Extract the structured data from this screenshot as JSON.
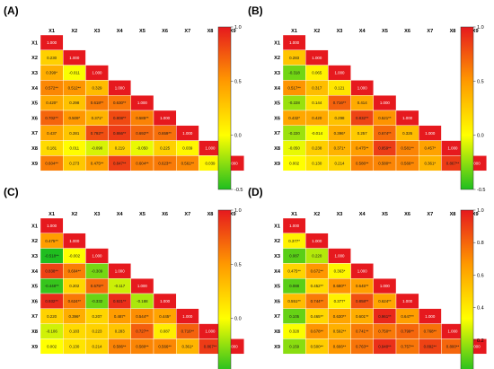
{
  "figure": {
    "panel_labels": [
      "(A)",
      "(B)",
      "(C)",
      "(D)"
    ]
  },
  "chart_data": [
    {
      "type": "heatmap",
      "panel": "(A)",
      "variables": [
        "X1",
        "X2",
        "X3",
        "X4",
        "X5",
        "X6",
        "X7",
        "X8",
        "X9"
      ],
      "colorbar": {
        "min": -0.5,
        "max": 1.0,
        "ticks": [
          "1.0",
          "0.5",
          "0.0",
          "-0.5"
        ],
        "colors": [
          "#1fbe1f",
          "#ffff00",
          "#ff9900",
          "#e6191e"
        ]
      },
      "cells": [
        [
          "1.000"
        ],
        [
          "0.230",
          "1.000"
        ],
        [
          "0.399*",
          "-0.011",
          "1.000"
        ],
        [
          "0.572**",
          "0.512**",
          "0.329",
          "1.000"
        ],
        [
          "0.420*",
          "0.298",
          "0.618**",
          "0.630**",
          "1.000"
        ],
        [
          "0.702**",
          "0.509*",
          "0.371*",
          "0.808**",
          "0.585**",
          "1.000"
        ],
        [
          "0.437",
          "0.281",
          "0.792**",
          "0.866**",
          "0.692**",
          "0.659**",
          "1.000"
        ],
        [
          "0.181",
          "0.011",
          "-0.090",
          "0.219",
          "-0.050",
          "0.225",
          "0.039",
          "1.000"
        ],
        [
          "0.604**",
          "0.273",
          "0.475**",
          "0.847**",
          "0.604**",
          "0.623**",
          "0.561**",
          "0.039",
          "1.000"
        ]
      ]
    },
    {
      "type": "heatmap",
      "panel": "(B)",
      "variables": [
        "X1",
        "X2",
        "X3",
        "X4",
        "X5",
        "X6",
        "X7",
        "X8",
        "X9"
      ],
      "colorbar": {
        "min": -0.5,
        "max": 1.0,
        "ticks": [
          "1.0",
          "0.5",
          "0.0",
          "-0.5"
        ],
        "colors": [
          "#1fbe1f",
          "#ffff00",
          "#ff9900",
          "#e6191e"
        ]
      },
      "cells": [
        [
          "1.000"
        ],
        [
          "0.283",
          "1.000"
        ],
        [
          "-0.318",
          "0.065",
          "1.000"
        ],
        [
          "0.517**",
          "0.317",
          "0.121",
          "1.000"
        ],
        [
          "-0.228",
          "0.144",
          "0.716**",
          "0.414",
          "1.000"
        ],
        [
          "0.432*",
          "0.420",
          "0.298",
          "0.832**",
          "0.521**",
          "1.000"
        ],
        [
          "-0.220",
          "-0.014",
          "0.396*",
          "0.257",
          "0.674**",
          "0.326",
          "1.000"
        ],
        [
          "-0.050",
          "0.238",
          "0.371*",
          "0.475**",
          "0.859**",
          "0.581**",
          "0.457*",
          "1.000"
        ],
        [
          "0.002",
          "0.130",
          "0.214",
          "0.586**",
          "0.580**",
          "0.566**",
          "0.361*",
          "0.867**",
          "1.000"
        ]
      ]
    },
    {
      "type": "heatmap",
      "panel": "(C)",
      "variables": [
        "X1",
        "X2",
        "X3",
        "X4",
        "X5",
        "X6",
        "X7",
        "X8",
        "X9"
      ],
      "colorbar": {
        "min": -0.5,
        "max": 1.0,
        "ticks": [
          "1.0",
          "0.5",
          "0.0",
          "-0.5"
        ],
        "colors": [
          "#1fbe1f",
          "#ffff00",
          "#ff9900",
          "#e6191e"
        ]
      },
      "cells": [
        [
          "1.000"
        ],
        [
          "0.475**",
          "1.000"
        ],
        [
          "-0.518**",
          "-0.002",
          "1.000"
        ],
        [
          "0.838**",
          "0.604**",
          "-0.309",
          "1.000"
        ],
        [
          "-0.448**",
          "0.202",
          "0.675**",
          "-0.117",
          "1.000"
        ],
        [
          "0.932**",
          "0.624**",
          "-0.332",
          "0.921**",
          "-0.188",
          "1.000"
        ],
        [
          "0.220",
          "0.396*",
          "0.207",
          "0.487*",
          "0.544**",
          "0.445*",
          "1.000"
        ],
        [
          "-0.106",
          "0.183",
          "0.223",
          "0.283",
          "0.727**",
          "0.087",
          "0.716**",
          "1.000"
        ],
        [
          "0.002",
          "0.130",
          "0.214",
          "0.586**",
          "0.580**",
          "0.566**",
          "0.361*",
          "0.867**",
          "1.000"
        ]
      ]
    },
    {
      "type": "heatmap",
      "panel": "(D)",
      "variables": [
        "X1",
        "X2",
        "X3",
        "X4",
        "X5",
        "X6",
        "X7",
        "X8",
        "X9"
      ],
      "colorbar": {
        "min": 0.0,
        "max": 1.0,
        "ticks": [
          "1.0",
          "0.8",
          "0.6",
          "0.4",
          "0.2",
          "0.0"
        ],
        "colors": [
          "#1fbe1f",
          "#ffff00",
          "#ff9900",
          "#e6191e"
        ]
      },
      "cells": [
        [
          "1.000"
        ],
        [
          "0.377*",
          "1.000"
        ],
        [
          "0.087",
          "0.220",
          "1.000"
        ],
        [
          "0.475**",
          "0.672**",
          "0.363*",
          "1.000"
        ],
        [
          "0.088",
          "0.452**",
          "0.680**",
          "0.645**",
          "1.000"
        ],
        [
          "0.551**",
          "0.744**",
          "0.377*",
          "0.858**",
          "0.624**",
          "1.000"
        ],
        [
          "0.105",
          "0.465**",
          "0.630**",
          "0.601**",
          "0.961**",
          "0.647**",
          "1.000"
        ],
        [
          "0.328",
          "0.678**",
          "0.592**",
          "0.741**",
          "0.750**",
          "0.799**",
          "0.768**",
          "1.000"
        ],
        [
          "0.159",
          "0.500**",
          "0.666**",
          "0.763**",
          "0.940**",
          "0.757**",
          "0.892**",
          "0.800**",
          "1.000"
        ]
      ]
    }
  ]
}
